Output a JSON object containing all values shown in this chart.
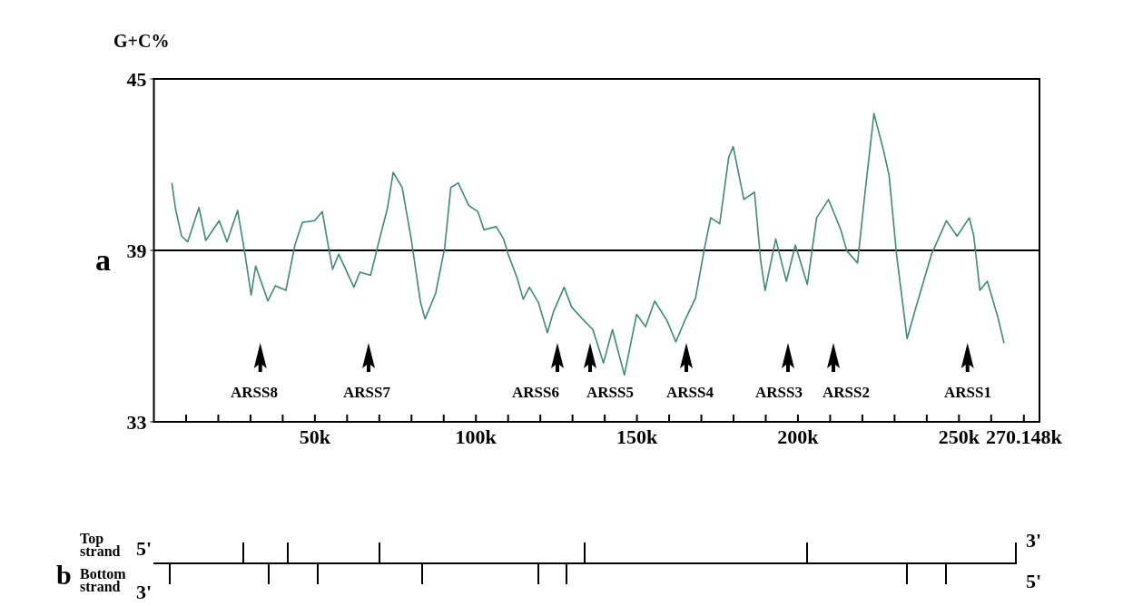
{
  "chart_data": [
    {
      "type": "line",
      "title": "a",
      "ylabel": "G+C%",
      "x": [
        5.6,
        6.7,
        8.6,
        10.5,
        14.0,
        16.1,
        20.3,
        22.7,
        26.0,
        28.3,
        30.2,
        31.6,
        35.4,
        37.7,
        41.0,
        43.8,
        46.1,
        49.9,
        52.3,
        54.1,
        55.5,
        57.4,
        62.1,
        64.0,
        67.3,
        69.6,
        72.5,
        74.3,
        77.1,
        79.9,
        82.8,
        84.2,
        87.5,
        90.3,
        92.2,
        94.5,
        97.8,
        100.6,
        102.5,
        106.3,
        108.6,
        110.0,
        112.8,
        114.7,
        116.6,
        119.4,
        122.2,
        124.1,
        127.4,
        129.7,
        133.5,
        136.3,
        139.6,
        142.4,
        146.1,
        149.9,
        152.7,
        155.5,
        159.3,
        162.1,
        164.9,
        168.2,
        171.0,
        172.9,
        175.7,
        178.5,
        179.9,
        183.2,
        186.5,
        188.4,
        189.8,
        193.1,
        196.4,
        199.2,
        202.9,
        205.8,
        209.5,
        213.3,
        215.2,
        218.5,
        220.8,
        223.6,
        226.4,
        228.3,
        230.6,
        233.9,
        236.8,
        241.5,
        246.1,
        249.4,
        253.2,
        254.6,
        256.5,
        258.8,
        262.1,
        264.0
      ],
      "series": [
        {
          "color": "#3d8b73",
          "values": [
            41.36,
            40.46,
            39.5,
            39.3,
            40.5,
            39.35,
            40.04,
            39.3,
            40.4,
            38.87,
            37.44,
            38.45,
            37.23,
            37.76,
            37.6,
            39.19,
            39.98,
            40.04,
            40.36,
            39.19,
            38.34,
            38.87,
            37.71,
            38.24,
            38.13,
            39.19,
            40.46,
            41.73,
            41.2,
            39.4,
            37.18,
            36.6,
            37.5,
            39.09,
            41.2,
            41.36,
            40.57,
            40.36,
            39.72,
            39.83,
            39.4,
            38.87,
            38.03,
            37.29,
            37.71,
            37.18,
            36.12,
            36.86,
            37.71,
            37.02,
            36.55,
            36.23,
            35.06,
            36.23,
            34.64,
            36.76,
            36.33,
            37.23,
            36.55,
            35.8,
            36.55,
            37.34,
            39.09,
            40.14,
            39.93,
            42.26,
            42.63,
            40.78,
            41.04,
            38.66,
            37.6,
            39.4,
            37.92,
            39.19,
            37.81,
            40.14,
            40.78,
            39.72,
            38.98,
            38.56,
            40.99,
            43.79,
            42.58,
            41.63,
            38.87,
            35.91,
            37.07,
            38.87,
            40.04,
            39.5,
            40.14,
            39.5,
            37.6,
            37.92,
            36.65,
            35.75
          ]
        }
      ],
      "xlim": [
        0,
        275
      ],
      "xticks": [
        {
          "value": 10,
          "label": null
        },
        {
          "value": 20,
          "label": null
        },
        {
          "value": 30,
          "label": null
        },
        {
          "value": 40,
          "label": null
        },
        {
          "value": 50,
          "label": "50k"
        },
        {
          "value": 60,
          "label": null
        },
        {
          "value": 70,
          "label": null
        },
        {
          "value": 80,
          "label": null
        },
        {
          "value": 90,
          "label": null
        },
        {
          "value": 100,
          "label": "100k"
        },
        {
          "value": 110,
          "label": null
        },
        {
          "value": 120,
          "label": null
        },
        {
          "value": 130,
          "label": null
        },
        {
          "value": 140,
          "label": null
        },
        {
          "value": 150,
          "label": "150k"
        },
        {
          "value": 160,
          "label": null
        },
        {
          "value": 170,
          "label": null
        },
        {
          "value": 180,
          "label": null
        },
        {
          "value": 190,
          "label": null
        },
        {
          "value": 200,
          "label": "200k"
        },
        {
          "value": 210,
          "label": null
        },
        {
          "value": 220,
          "label": null
        },
        {
          "value": 230,
          "label": null
        },
        {
          "value": 240,
          "label": null
        },
        {
          "value": 250,
          "label": "250k"
        },
        {
          "value": 260,
          "label": null
        },
        {
          "value": 270.148,
          "label": "270.148k"
        }
      ],
      "ylim": [
        33,
        45
      ],
      "yticks": [
        33,
        39,
        45
      ],
      "ref_lines": [
        {
          "axis": "y",
          "value": 39,
          "color": "#000000"
        }
      ],
      "annotations": [
        "ARSS8",
        "ARSS7",
        "ARSS6",
        "ARSS5",
        "ARSS4",
        "ARSS3",
        "ARSS2",
        "ARSS1"
      ]
    },
    {
      "type": "other",
      "title": "b",
      "annotations": [
        "Top strand",
        "Bottom strand",
        "5'",
        "3'",
        "3'",
        "5'"
      ]
    }
  ]
}
